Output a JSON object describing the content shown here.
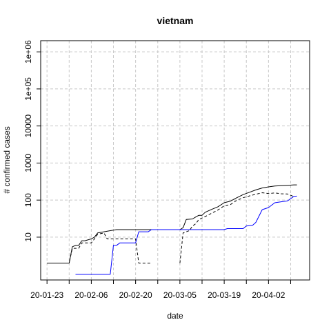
{
  "chart_data": {
    "type": "line",
    "title": "vietnam",
    "xlabel": "date",
    "ylabel": "# confirmed cases",
    "y_scale": "log",
    "ylim": [
      0.7,
      2000000
    ],
    "xlim": [
      "2020-01-21",
      "2020-04-15"
    ],
    "grid": true,
    "legend": "none",
    "x_ticks": [
      {
        "date": "2020-01-23",
        "label": "20-01-23"
      },
      {
        "date": "2020-02-06",
        "label": "20-02-06"
      },
      {
        "date": "2020-02-20",
        "label": "20-02-20"
      },
      {
        "date": "2020-03-05",
        "label": "20-03-05"
      },
      {
        "date": "2020-03-19",
        "label": "20-03-19"
      },
      {
        "date": "2020-04-02",
        "label": "20-04-02"
      }
    ],
    "x_minor_ticks": [
      "2020-01-30",
      "2020-02-13",
      "2020-02-27",
      "2020-03-12",
      "2020-03-26",
      "2020-04-09"
    ],
    "y_ticks": [
      {
        "value": 10,
        "label": "10"
      },
      {
        "value": 100,
        "label": "100"
      },
      {
        "value": 1000,
        "label": "1000"
      },
      {
        "value": 10000,
        "label": "10000"
      },
      {
        "value": 100000,
        "label": "1e+05"
      },
      {
        "value": 1000000,
        "label": "1e+06"
      }
    ],
    "series": [
      {
        "color": "#000000",
        "dash": "solid",
        "points": [
          [
            "2020-01-23",
            2
          ],
          [
            "2020-01-29",
            2
          ],
          [
            "2020-01-30",
            2
          ],
          [
            "2020-01-31",
            5.5
          ],
          [
            "2020-02-01",
            6
          ],
          [
            "2020-02-02",
            6
          ],
          [
            "2020-02-03",
            8
          ],
          [
            "2020-02-04",
            8
          ],
          [
            "2020-02-06",
            9
          ],
          [
            "2020-02-07",
            10
          ],
          [
            "2020-02-08",
            13
          ],
          [
            "2020-02-10",
            14
          ],
          [
            "2020-02-12",
            15
          ],
          [
            "2020-02-14",
            16
          ],
          [
            "2020-03-05",
            16
          ],
          [
            "2020-03-06",
            18
          ],
          [
            "2020-03-07",
            30
          ],
          [
            "2020-03-09",
            31
          ],
          [
            "2020-03-10",
            35
          ],
          [
            "2020-03-11",
            39
          ],
          [
            "2020-03-12",
            39
          ],
          [
            "2020-03-13",
            47
          ],
          [
            "2020-03-15",
            56
          ],
          [
            "2020-03-17",
            66
          ],
          [
            "2020-03-19",
            85
          ],
          [
            "2020-03-21",
            94
          ],
          [
            "2020-03-23",
            116
          ],
          [
            "2020-03-25",
            141
          ],
          [
            "2020-03-27",
            163
          ],
          [
            "2020-03-29",
            188
          ],
          [
            "2020-03-31",
            212
          ],
          [
            "2020-04-02",
            227
          ],
          [
            "2020-04-04",
            240
          ],
          [
            "2020-04-06",
            245
          ],
          [
            "2020-04-08",
            251
          ],
          [
            "2020-04-10",
            257
          ],
          [
            "2020-04-11",
            258
          ]
        ]
      },
      {
        "color": "#000000",
        "dash": "dashed",
        "points": [
          [
            "2020-01-23",
            2
          ],
          [
            "2020-01-30",
            2
          ],
          [
            "2020-01-31",
            5
          ],
          [
            "2020-02-02",
            5
          ],
          [
            "2020-02-03",
            7
          ],
          [
            "2020-02-06",
            7
          ],
          [
            "2020-02-07",
            9
          ],
          [
            "2020-02-08",
            12
          ],
          [
            "2020-02-10",
            13
          ],
          [
            "2020-02-11",
            9
          ],
          [
            "2020-02-20",
            9
          ],
          [
            "2020-02-21",
            2
          ],
          [
            "2020-02-25",
            2
          ],
          null,
          [
            "2020-03-05",
            2
          ],
          [
            "2020-03-06",
            13
          ],
          [
            "2020-03-08",
            15
          ],
          [
            "2020-03-09",
            20
          ],
          [
            "2020-03-10",
            23
          ],
          [
            "2020-03-11",
            30
          ],
          [
            "2020-03-13",
            36
          ],
          [
            "2020-03-15",
            44
          ],
          [
            "2020-03-17",
            54
          ],
          [
            "2020-03-19",
            70
          ],
          [
            "2020-03-21",
            76
          ],
          [
            "2020-03-23",
            99
          ],
          [
            "2020-03-25",
            116
          ],
          [
            "2020-03-27",
            130
          ],
          [
            "2020-03-29",
            144
          ],
          [
            "2020-03-31",
            158
          ],
          [
            "2020-04-02",
            150
          ],
          [
            "2020-04-04",
            156
          ],
          [
            "2020-04-06",
            148
          ],
          [
            "2020-04-08",
            146
          ],
          [
            "2020-04-10",
            125
          ]
        ]
      },
      {
        "color": "#0000ff",
        "dash": "solid",
        "points": [
          [
            "2020-02-01",
            1
          ],
          [
            "2020-02-12",
            1
          ],
          [
            "2020-02-13",
            6
          ],
          [
            "2020-02-14",
            6
          ],
          [
            "2020-02-15",
            7
          ],
          [
            "2020-02-20",
            7
          ],
          [
            "2020-02-21",
            14
          ],
          [
            "2020-02-24",
            14
          ],
          [
            "2020-02-25",
            16
          ],
          [
            "2020-03-05",
            16
          ],
          [
            "2020-03-06",
            16
          ],
          [
            "2020-03-19",
            16
          ],
          [
            "2020-03-20",
            17
          ],
          [
            "2020-03-25",
            17
          ],
          [
            "2020-03-26",
            20
          ],
          [
            "2020-03-28",
            21
          ],
          [
            "2020-03-29",
            25
          ],
          [
            "2020-03-31",
            55
          ],
          [
            "2020-04-02",
            63
          ],
          [
            "2020-04-04",
            85
          ],
          [
            "2020-04-06",
            90
          ],
          [
            "2020-04-08",
            95
          ],
          [
            "2020-04-10",
            126
          ],
          [
            "2020-04-11",
            128
          ]
        ]
      }
    ]
  }
}
